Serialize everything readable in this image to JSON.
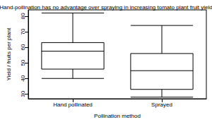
{
  "chart_data": {
    "type": "boxplot",
    "title": "Hand-pollination has no advantage over spraying in increasing tomato plant fruit yield",
    "x_label": "Pollination method",
    "y_label": "Yield / fruits per plant",
    "categories": [
      "Hand pollinated",
      "Sprayed"
    ],
    "values": [
      [
        40,
        46,
        57.5,
        63,
        82
      ],
      [
        28,
        33,
        45,
        56,
        74
      ]
    ],
    "color": "#000000",
    "ylim": [
      27,
      84
    ],
    "yticks": [
      30,
      40,
      50,
      60,
      70,
      80
    ],
    "grid": false
  }
}
